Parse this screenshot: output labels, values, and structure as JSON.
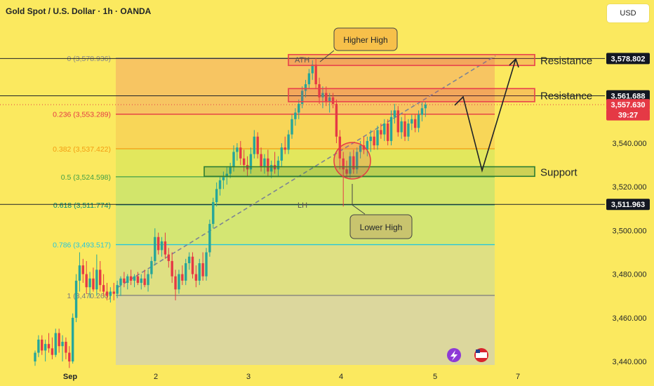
{
  "header": {
    "symbol_title": "Gold Spot / U.S. Dollar · 1h · OANDA",
    "currency_button": "USD"
  },
  "colors": {
    "background": "#fbe95f",
    "candle_up": "#26a69a",
    "candle_down": "#e53945",
    "resistance": "#e8424b",
    "support": "#2e7d32",
    "callout_fill": "#f7c04a",
    "callout_fill_green": "#c9c46e",
    "fib_red": "#e53945",
    "fib_orange": "#f39c12",
    "fib_green": "#43a047",
    "fib_teal": "#00897b",
    "fib_cyan": "#26c6da",
    "fib_grey": "#7b7b7b",
    "price_tag_dark": "#131722",
    "price_tag_red": "#e53945"
  },
  "chart_data": {
    "type": "candlestick",
    "x_tick_labels": [
      "Sep",
      "2",
      "3",
      "4",
      "5",
      "7"
    ],
    "y_ticks": [
      "3,440.000",
      "3,460.000",
      "3,480.000",
      "3,500.000",
      "3,520.000",
      "3,540.000"
    ],
    "ylim": [
      3436,
      3590
    ],
    "fib_levels": [
      {
        "label": "0 (3,578.936)",
        "ratio": 0,
        "price": 3578.936,
        "color": "#8a8a8a"
      },
      {
        "label": "0.236 (3,553.289)",
        "ratio": 0.236,
        "price": 3553.289,
        "color": "#e53945"
      },
      {
        "label": "0.382 (3,537.422)",
        "ratio": 0.382,
        "price": 3537.422,
        "color": "#f39c12"
      },
      {
        "label": "0.5 (3,524.598)",
        "ratio": 0.5,
        "price": 3524.598,
        "color": "#43a047"
      },
      {
        "label": "0.618 (3,511.774)",
        "ratio": 0.618,
        "price": 3511.774,
        "color": "#00897b"
      },
      {
        "label": "0.786 (3,493.517)",
        "ratio": 0.786,
        "price": 3493.517,
        "color": "#26c6da"
      },
      {
        "label": "1 (3,470.260)",
        "ratio": 1,
        "price": 3470.26,
        "color": "#7b7b7b"
      }
    ],
    "price_tags": [
      {
        "text": "3,578.802",
        "price": 3578.802,
        "style": "dark"
      },
      {
        "text": "3,561.688",
        "price": 3561.688,
        "style": "dark"
      },
      {
        "text": "3,557.630",
        "price": 3557.63,
        "style": "red"
      },
      {
        "text": "39:27",
        "price": 3553.0,
        "style": "red"
      },
      {
        "text": "3,511.963",
        "price": 3511.963,
        "style": "dark"
      }
    ],
    "zones": [
      {
        "label": "Resistance",
        "low": 3575.6,
        "high": 3580.6,
        "color": "#e8424b"
      },
      {
        "label": "Resistance",
        "low": 3559.0,
        "high": 3565.0,
        "color": "#e8424b"
      },
      {
        "label": "Support",
        "low": 3524.8,
        "high": 3529.2,
        "color": "#2e7d32"
      }
    ],
    "annotations": {
      "ath": "ATH",
      "lh": "LH",
      "higher_high": "Higher High",
      "lower_high": "Lower High"
    },
    "candles": [
      [
        3440,
        3445,
        3438,
        3444
      ],
      [
        3444,
        3452,
        3442,
        3450
      ],
      [
        3450,
        3452,
        3443,
        3445
      ],
      [
        3445,
        3450,
        3440,
        3448
      ],
      [
        3448,
        3453,
        3444,
        3446
      ],
      [
        3446,
        3451,
        3441,
        3443
      ],
      [
        3443,
        3455,
        3442,
        3453
      ],
      [
        3453,
        3455,
        3444,
        3447
      ],
      [
        3447,
        3452,
        3440,
        3449
      ],
      [
        3449,
        3451,
        3441,
        3444
      ],
      [
        3444,
        3447,
        3437,
        3440
      ],
      [
        3440,
        3462,
        3439,
        3460
      ],
      [
        3460,
        3480,
        3458,
        3477
      ],
      [
        3477,
        3490,
        3472,
        3484
      ],
      [
        3484,
        3487,
        3476,
        3480
      ],
      [
        3480,
        3486,
        3471,
        3474
      ],
      [
        3474,
        3481,
        3469,
        3478
      ],
      [
        3478,
        3483,
        3472,
        3473
      ],
      [
        3473,
        3489,
        3470,
        3482
      ],
      [
        3482,
        3486,
        3472,
        3475
      ],
      [
        3475,
        3480,
        3470,
        3472
      ],
      [
        3472,
        3476,
        3468,
        3470
      ],
      [
        3470,
        3474,
        3467,
        3472
      ],
      [
        3472,
        3476,
        3468,
        3471
      ],
      [
        3471,
        3477,
        3469,
        3475
      ],
      [
        3475,
        3479,
        3470,
        3478
      ],
      [
        3478,
        3481,
        3474,
        3476
      ],
      [
        3476,
        3480,
        3473,
        3479
      ],
      [
        3479,
        3482,
        3475,
        3477
      ],
      [
        3477,
        3480,
        3474,
        3479
      ],
      [
        3479,
        3481,
        3475,
        3476
      ],
      [
        3476,
        3480,
        3473,
        3478
      ],
      [
        3478,
        3482,
        3474,
        3475
      ],
      [
        3475,
        3482,
        3472,
        3480
      ],
      [
        3480,
        3488,
        3478,
        3486
      ],
      [
        3486,
        3501,
        3484,
        3497
      ],
      [
        3497,
        3499,
        3489,
        3491
      ],
      [
        3491,
        3497,
        3488,
        3495
      ],
      [
        3495,
        3499,
        3487,
        3489
      ],
      [
        3489,
        3492,
        3483,
        3486
      ],
      [
        3486,
        3490,
        3476,
        3479
      ],
      [
        3479,
        3482,
        3468,
        3473
      ],
      [
        3473,
        3482,
        3471,
        3480
      ],
      [
        3480,
        3484,
        3475,
        3477
      ],
      [
        3477,
        3487,
        3475,
        3485
      ],
      [
        3485,
        3490,
        3482,
        3488
      ],
      [
        3488,
        3490,
        3478,
        3480
      ],
      [
        3480,
        3484,
        3474,
        3477
      ],
      [
        3477,
        3487,
        3475,
        3485
      ],
      [
        3485,
        3490,
        3477,
        3479
      ],
      [
        3479,
        3492,
        3477,
        3490
      ],
      [
        3490,
        3505,
        3488,
        3503
      ],
      [
        3503,
        3515,
        3501,
        3513
      ],
      [
        3513,
        3522,
        3511,
        3519
      ],
      [
        3519,
        3525,
        3516,
        3523
      ],
      [
        3523,
        3527,
        3519,
        3525
      ],
      [
        3525,
        3529,
        3521,
        3526
      ],
      [
        3526,
        3531,
        3524,
        3529
      ],
      [
        3529,
        3539,
        3527,
        3536
      ],
      [
        3536,
        3540,
        3532,
        3538
      ],
      [
        3538,
        3541,
        3530,
        3533
      ],
      [
        3533,
        3537,
        3527,
        3530
      ],
      [
        3530,
        3534,
        3525,
        3528
      ],
      [
        3528,
        3538,
        3526,
        3535
      ],
      [
        3535,
        3546,
        3533,
        3543
      ],
      [
        3543,
        3545,
        3533,
        3535
      ],
      [
        3535,
        3538,
        3527,
        3529
      ],
      [
        3529,
        3535,
        3526,
        3533
      ],
      [
        3533,
        3537,
        3525,
        3527
      ],
      [
        3527,
        3532,
        3524,
        3530
      ],
      [
        3530,
        3536,
        3526,
        3528
      ],
      [
        3528,
        3534,
        3525,
        3532
      ],
      [
        3532,
        3540,
        3529,
        3538
      ],
      [
        3538,
        3543,
        3535,
        3537
      ],
      [
        3537,
        3546,
        3535,
        3544
      ],
      [
        3544,
        3553,
        3542,
        3551
      ],
      [
        3551,
        3556,
        3548,
        3554
      ],
      [
        3554,
        3560,
        3551,
        3558
      ],
      [
        3558,
        3566,
        3556,
        3564
      ],
      [
        3564,
        3569,
        3561,
        3567
      ],
      [
        3567,
        3574,
        3565,
        3572
      ],
      [
        3572,
        3578,
        3569,
        3576
      ],
      [
        3576,
        3579,
        3565,
        3567
      ],
      [
        3567,
        3570,
        3558,
        3561
      ],
      [
        3561,
        3566,
        3556,
        3563
      ],
      [
        3563,
        3566,
        3557,
        3559
      ],
      [
        3559,
        3563,
        3554,
        3561
      ],
      [
        3561,
        3563,
        3556,
        3558
      ],
      [
        3558,
        3560,
        3540,
        3543
      ],
      [
        3543,
        3546,
        3528,
        3533
      ],
      [
        3533,
        3536,
        3511,
        3528
      ],
      [
        3528,
        3532,
        3524,
        3526
      ],
      [
        3526,
        3536,
        3524,
        3534
      ],
      [
        3534,
        3537,
        3526,
        3528
      ],
      [
        3528,
        3538,
        3526,
        3536
      ],
      [
        3536,
        3541,
        3533,
        3539
      ],
      [
        3539,
        3543,
        3535,
        3537
      ],
      [
        3537,
        3543,
        3534,
        3541
      ],
      [
        3541,
        3546,
        3536,
        3543
      ],
      [
        3543,
        3546,
        3537,
        3539
      ],
      [
        3539,
        3548,
        3537,
        3546
      ],
      [
        3546,
        3549,
        3542,
        3544
      ],
      [
        3544,
        3551,
        3541,
        3549
      ],
      [
        3549,
        3551,
        3539,
        3541
      ],
      [
        3541,
        3555,
        3539,
        3552
      ],
      [
        3552,
        3558,
        3549,
        3555
      ],
      [
        3555,
        3557,
        3543,
        3545
      ],
      [
        3545,
        3552,
        3542,
        3550
      ],
      [
        3550,
        3553,
        3541,
        3543
      ],
      [
        3543,
        3551,
        3541,
        3549
      ],
      [
        3549,
        3553,
        3546,
        3551
      ],
      [
        3551,
        3553,
        3545,
        3547
      ],
      [
        3547,
        3555,
        3545,
        3553
      ],
      [
        3553,
        3559,
        3550,
        3556
      ],
      [
        3556,
        3559,
        3552,
        3557.63
      ]
    ]
  }
}
